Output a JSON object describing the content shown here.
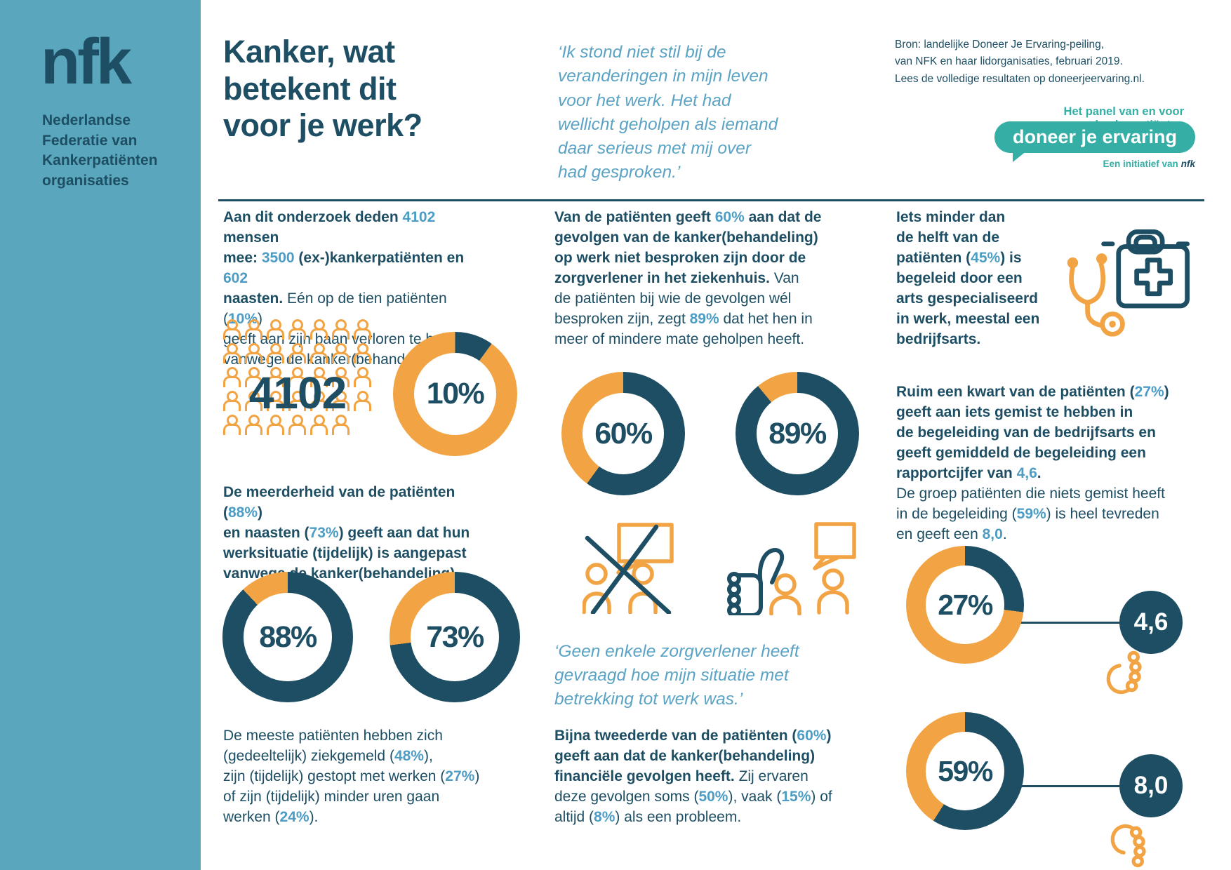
{
  "colors": {
    "dark": "#1d4e63",
    "orange": "#f2a444",
    "accent": "#4c9cc4",
    "quote": "#5aa3c4",
    "sidebar": "#5aa7bd",
    "badge": "#35afa5",
    "bg": "#ffffff"
  },
  "brand": {
    "logo": "nfk",
    "org": "Nederlandse\nFederatie van\nKankerpatiënten\norganisaties"
  },
  "header": {
    "title": "Kanker, wat\nbetekent dit\nvoor je werk?",
    "quote": "‘Ik stond niet stil bij de\nveranderingen in mijn leven\nvoor het werk. Het had\nwellicht geholpen als iemand\ndaar serieus met mij over\nhad gesproken.’",
    "source": "Bron: landelijke Doneer Je Ervaring-peiling,\nvan NFK en haar lidorganisaties, februari 2019.\nLees de volledige resultaten op doneerjeervaring.nl.",
    "panel_tagline": "Het panel van en voor kankerpatiënten",
    "badge_label": "doneer je ervaring",
    "initiative_prefix": "Een initiatief van",
    "initiative_brand": "nfk"
  },
  "participants": {
    "count_label": "4102",
    "grid_rows": [
      7,
      7,
      7,
      7,
      6
    ]
  },
  "col1": {
    "p1": [
      {
        "t": "Aan dit onderzoek deden ",
        "s": "b"
      },
      {
        "t": "4102",
        "s": "a"
      },
      {
        "t": " mensen\nmee: ",
        "s": "b"
      },
      {
        "t": "3500",
        "s": "a"
      },
      {
        "t": " (ex-)kankerpatiënten en ",
        "s": "b"
      },
      {
        "t": "602",
        "s": "a"
      },
      {
        "t": "\nnaasten. ",
        "s": "b"
      },
      {
        "t": "Eén op de tien patiënten ("
      },
      {
        "t": "10%",
        "s": "a"
      },
      {
        "t": ")\ngeeft aan zijn baan verloren te hebben\nvanwege de kanker(behandeling)."
      }
    ],
    "p2": [
      {
        "t": "De meerderheid van de patiënten (",
        "s": "b"
      },
      {
        "t": "88%",
        "s": "a"
      },
      {
        "t": ")\nen naasten (",
        "s": "b"
      },
      {
        "t": "73%",
        "s": "a"
      },
      {
        "t": ") geeft aan dat hun\nwerksituatie (tijdelijk) is aangepast\nvanwege de kanker(behandeling).",
        "s": "b"
      }
    ],
    "p3": [
      {
        "t": "De meeste patiënten hebben zich\n(gedeeltelijk) ziekgemeld ("
      },
      {
        "t": "48%",
        "s": "a"
      },
      {
        "t": "),\nzijn (tijdelijk) gestopt met werken ("
      },
      {
        "t": "27%",
        "s": "a"
      },
      {
        "t": ")\nof zijn (tijdelijk) minder uren gaan\nwerken ("
      },
      {
        "t": "24%",
        "s": "a"
      },
      {
        "t": ")."
      }
    ]
  },
  "col2": {
    "p1": [
      {
        "t": "Van de patiënten geeft ",
        "s": "b"
      },
      {
        "t": "60%",
        "s": "a"
      },
      {
        "t": " aan dat de\ngevolgen van de kanker(behandeling)\nop werk niet besproken zijn door de\nzorgverlener in het ziekenhuis. ",
        "s": "b"
      },
      {
        "t": "Van\nde patiënten bij wie de gevolgen wél\nbesproken zijn, zegt "
      },
      {
        "t": "89%",
        "s": "a"
      },
      {
        "t": " dat het hen in\nmeer of mindere mate geholpen heeft."
      }
    ],
    "quote": "‘Geen enkele zorgverlener heeft\ngevraagd hoe mijn situatie met\nbetrekking tot werk was.’",
    "p2": [
      {
        "t": "Bijna tweederde van de patiënten (",
        "s": "b"
      },
      {
        "t": "60%",
        "s": "a"
      },
      {
        "t": ")\ngeeft aan dat de kanker(behandeling)\nfinanciële gevolgen heeft. ",
        "s": "b"
      },
      {
        "t": "Zij ervaren\ndeze gevolgen soms ("
      },
      {
        "t": "50%",
        "s": "a"
      },
      {
        "t": "), vaak ("
      },
      {
        "t": "15%",
        "s": "a"
      },
      {
        "t": ") of\naltijd ("
      },
      {
        "t": "8%",
        "s": "a"
      },
      {
        "t": ") als een probleem."
      }
    ]
  },
  "col3": {
    "p1": [
      {
        "t": "Iets minder dan\nde helft van de\npatiënten (",
        "s": "b"
      },
      {
        "t": "45%",
        "s": "a"
      },
      {
        "t": ") is\nbegeleid door een\narts gespecialiseerd\nin werk, meestal een\nbedrijfsarts.",
        "s": "b"
      }
    ],
    "p2": [
      {
        "t": "Ruim een kwart van de patiënten (",
        "s": "b"
      },
      {
        "t": "27%",
        "s": "a"
      },
      {
        "t": ")\ngeeft aan iets gemist te hebben in\nde begeleiding van de bedrijfsarts en\ngeeft gemiddeld de begeleiding een\nrapportcijfer van ",
        "s": "b"
      },
      {
        "t": "4,6",
        "s": "a"
      },
      {
        "t": ".",
        "s": "b"
      },
      {
        "t": "\nDe groep patiënten die niets gemist heeft\nin de begeleiding ("
      },
      {
        "t": "59%",
        "s": "a"
      },
      {
        "t": ") is heel tevreden\nen geeft een "
      },
      {
        "t": "8,0",
        "s": "a"
      },
      {
        "t": "."
      }
    ]
  },
  "chart_data": [
    {
      "type": "pictogram",
      "id": "deelnemers-onderzoek",
      "value": 4102,
      "label": "4102",
      "note": "3500 (ex-)kankerpatiënten en 602 naasten"
    },
    {
      "type": "donut",
      "id": "baan-verloren",
      "value": 10,
      "label": "10%",
      "filled_color": "#1d4e63",
      "rest_color": "#f2a444"
    },
    {
      "type": "donut",
      "id": "werksituatie-aangepast-patienten",
      "value": 88,
      "label": "88%",
      "filled_color": "#1d4e63",
      "rest_color": "#f2a444"
    },
    {
      "type": "donut",
      "id": "werksituatie-aangepast-naasten",
      "value": 73,
      "label": "73%",
      "filled_color": "#1d4e63",
      "rest_color": "#f2a444"
    },
    {
      "type": "donut",
      "id": "gevolgen-werk-niet-besproken",
      "value": 60,
      "label": "60%",
      "filled_color": "#1d4e63",
      "rest_color": "#f2a444"
    },
    {
      "type": "donut",
      "id": "bespreking-geholpen",
      "value": 89,
      "label": "89%",
      "filled_color": "#1d4e63",
      "rest_color": "#f2a444"
    },
    {
      "type": "donut",
      "id": "iets-gemist-begeleiding",
      "value": 27,
      "label": "27%",
      "rating": "4,6",
      "filled_color": "#1d4e63",
      "rest_color": "#f2a444"
    },
    {
      "type": "donut",
      "id": "niets-gemist-begeleiding",
      "value": 59,
      "label": "59%",
      "rating": "8,0",
      "filled_color": "#1d4e63",
      "rest_color": "#f2a444"
    }
  ]
}
